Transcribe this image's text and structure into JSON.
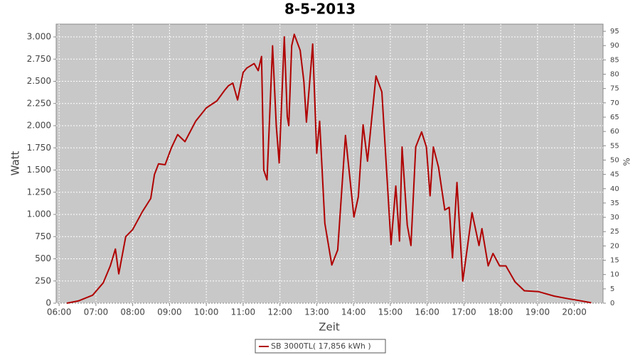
{
  "chart_data": {
    "type": "line",
    "title": "8-5-2013",
    "x_label": "Zeit",
    "y_label": "Watt",
    "y2_label": "%",
    "x": [
      6.21,
      6.52,
      6.91,
      7.2,
      7.39,
      7.53,
      7.62,
      7.81,
      8.0,
      8.26,
      8.49,
      8.59,
      8.7,
      8.88,
      9.05,
      9.22,
      9.42,
      9.71,
      10.0,
      10.29,
      10.5,
      10.6,
      10.72,
      10.85,
      11.0,
      11.1,
      11.3,
      11.41,
      11.5,
      11.56,
      11.65,
      11.73,
      11.8,
      11.9,
      11.98,
      12.12,
      12.2,
      12.24,
      12.32,
      12.39,
      12.55,
      12.65,
      12.72,
      12.85,
      12.89,
      13.0,
      13.08,
      13.22,
      13.41,
      13.57,
      13.78,
      14.01,
      14.13,
      14.26,
      14.38,
      14.61,
      14.77,
      15.02,
      15.15,
      15.25,
      15.32,
      15.46,
      15.56,
      15.69,
      15.85,
      15.98,
      16.08,
      16.17,
      16.31,
      16.48,
      16.6,
      16.69,
      16.81,
      16.97,
      17.1,
      17.22,
      17.41,
      17.49,
      17.66,
      17.79,
      17.97,
      18.14,
      18.39,
      18.64,
      19.03,
      19.45,
      19.84,
      20.13,
      20.46
    ],
    "series": [
      {
        "name": "SB 3000TL( 17,856 kWh )",
        "color": "#b00000",
        "values": [
          0,
          25,
          90,
          230,
          420,
          610,
          330,
          750,
          830,
          1030,
          1180,
          1450,
          1570,
          1560,
          1750,
          1900,
          1820,
          2050,
          2200,
          2280,
          2400,
          2450,
          2480,
          2290,
          2600,
          2650,
          2700,
          2620,
          2780,
          1500,
          1390,
          2200,
          2900,
          2000,
          1580,
          3000,
          2100,
          2000,
          2900,
          3030,
          2850,
          2500,
          2040,
          2700,
          2920,
          1690,
          2050,
          900,
          430,
          600,
          1890,
          970,
          1200,
          2010,
          1600,
          2560,
          2380,
          660,
          1320,
          700,
          1760,
          880,
          650,
          1760,
          1930,
          1760,
          1210,
          1760,
          1530,
          1050,
          1080,
          510,
          1360,
          250,
          650,
          1020,
          650,
          840,
          420,
          560,
          420,
          420,
          240,
          140,
          130,
          80,
          50,
          30,
          5
        ]
      }
    ],
    "xlim": [
      5.92,
      20.78
    ],
    "xticks": [
      {
        "value": 6,
        "label": "06:00"
      },
      {
        "value": 7,
        "label": "07:00"
      },
      {
        "value": 8,
        "label": "08:00"
      },
      {
        "value": 9,
        "label": "09:00"
      },
      {
        "value": 10,
        "label": "10:00"
      },
      {
        "value": 11,
        "label": "11:00"
      },
      {
        "value": 12,
        "label": "12:00"
      },
      {
        "value": 13,
        "label": "13:00"
      },
      {
        "value": 14,
        "label": "14:00"
      },
      {
        "value": 15,
        "label": "15:00"
      },
      {
        "value": 16,
        "label": "16:00"
      },
      {
        "value": 17,
        "label": "17:00"
      },
      {
        "value": 18,
        "label": "18:00"
      },
      {
        "value": 19,
        "label": "19:00"
      },
      {
        "value": 20,
        "label": "20:00"
      }
    ],
    "ylim": [
      0,
      3144
    ],
    "yticks": [
      0,
      250,
      500,
      750,
      {
        "value": 1000,
        "label": "1.000"
      },
      {
        "value": 1250,
        "label": "1.250"
      },
      {
        "value": 1500,
        "label": "1.500"
      },
      {
        "value": 1750,
        "label": "1.750"
      },
      {
        "value": 2000,
        "label": "2.000"
      },
      {
        "value": 2250,
        "label": "2.250"
      },
      {
        "value": 2500,
        "label": "2.500"
      },
      {
        "value": 2750,
        "label": "2.750"
      },
      {
        "value": 3000,
        "label": "3.000"
      }
    ],
    "y2lim": [
      0,
      97.5
    ],
    "y2ticks": [
      0,
      5,
      10,
      15,
      20,
      25,
      30,
      35,
      40,
      45,
      50,
      55,
      60,
      65,
      70,
      75,
      80,
      85,
      90,
      95
    ],
    "grid": true,
    "legend": "bottom"
  }
}
